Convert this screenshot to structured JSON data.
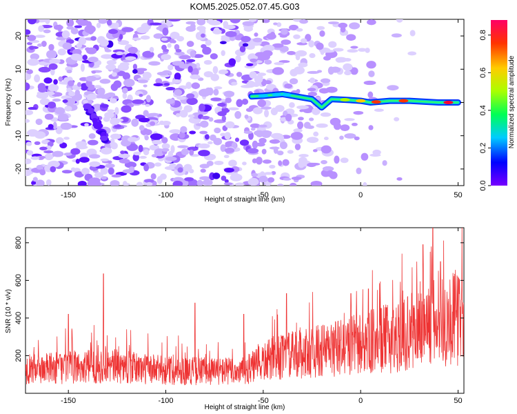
{
  "title": "KOM5.2025.052.07.45.G03",
  "colors": {
    "snr_line": "#ee3333",
    "spectrogram_background": "#ffffff",
    "colorbar": [
      "#7700ff",
      "#0000ff",
      "#00ccff",
      "#00ff55",
      "#aaff00",
      "#ffcc00",
      "#ff3300",
      "#ff0066"
    ]
  },
  "chart_data": [
    {
      "type": "heatmap",
      "xlabel": "Height of straight line (km)",
      "ylabel": "Frequency (Hz)",
      "xlim": [
        -172,
        53
      ],
      "ylim": [
        -25,
        25
      ],
      "x_ticks": [
        "-150",
        "-100",
        "-50",
        "0",
        "50"
      ],
      "y_ticks": [
        "-20",
        "-10",
        "0",
        "10",
        "20"
      ],
      "colorbar": {
        "label": "Normalized spectral amplitude",
        "range": [
          0,
          0.88
        ],
        "ticks": [
          "0.0",
          "0.2",
          "0.4",
          "0.6",
          "0.8"
        ]
      },
      "ridge": {
        "x": [
          -56,
          -50,
          -40,
          -33,
          -25,
          -20,
          -15,
          -8,
          0,
          5,
          15,
          25,
          40,
          50
        ],
        "y": [
          1.8,
          2.0,
          2.5,
          1.8,
          1.0,
          -1.5,
          1.0,
          0.8,
          0.5,
          0,
          0.5,
          0.5,
          0,
          0
        ]
      }
    },
    {
      "type": "line",
      "xlabel": "Height of straight line (km)",
      "ylabel": "SNR (10 * v/v)",
      "xlim": [
        -172,
        53
      ],
      "ylim": [
        0,
        880
      ],
      "x_ticks": [
        "-150",
        "-100",
        "-50",
        "0",
        "50"
      ],
      "y_ticks": [
        "200",
        "400",
        "600",
        "800"
      ],
      "trend_x": [
        -172,
        -130,
        -100,
        -60,
        -45,
        -10,
        20,
        35,
        53
      ],
      "trend_y": [
        130,
        150,
        125,
        120,
        190,
        250,
        310,
        380,
        420
      ],
      "peak_x": [
        -150,
        -132,
        -85,
        -60,
        -38,
        -5,
        4,
        32,
        37,
        41
      ],
      "peak_y": [
        420,
        635,
        480,
        420,
        530,
        530,
        555,
        790,
        880,
        700
      ]
    }
  ]
}
